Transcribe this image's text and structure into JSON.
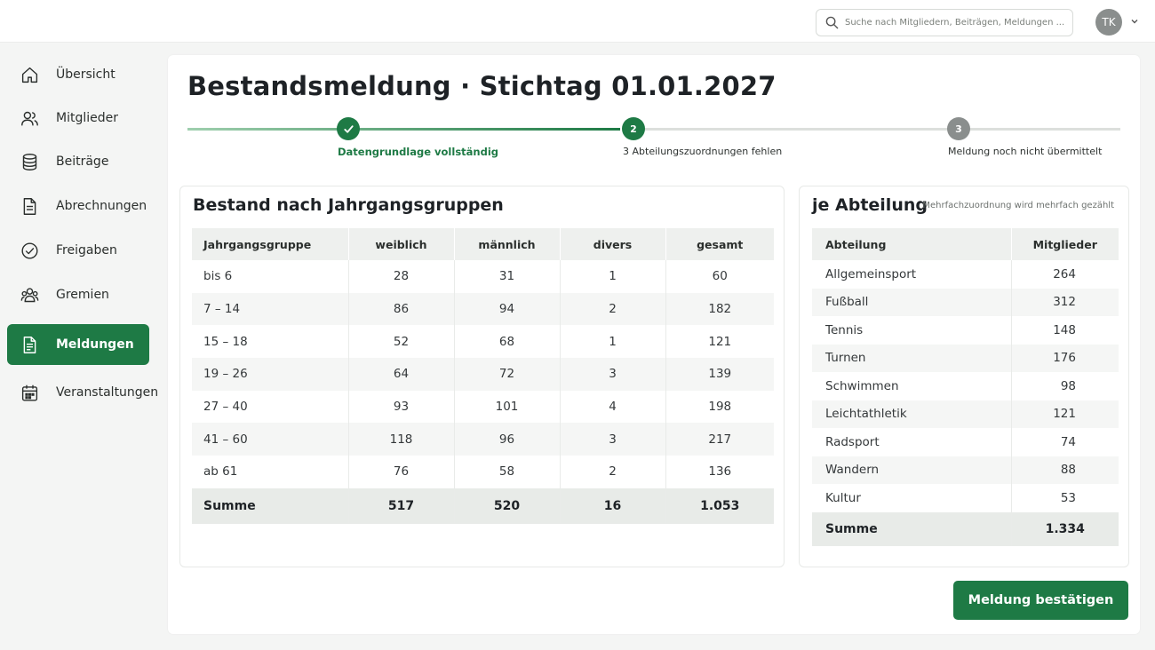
{
  "header": {
    "search_placeholder": "Suche nach Mitgliedern, Beiträgen, Meldungen ...",
    "avatar_initials": "TK"
  },
  "sidebar": {
    "items": [
      {
        "label": "Übersicht",
        "icon": "home-icon"
      },
      {
        "label": "Mitglieder",
        "icon": "users-icon"
      },
      {
        "label": "Beiträge",
        "icon": "coins-icon"
      },
      {
        "label": "Abrechnungen",
        "icon": "document-icon"
      },
      {
        "label": "Freigaben",
        "icon": "check-circle-icon"
      },
      {
        "label": "Gremien",
        "icon": "group-icon"
      },
      {
        "label": "Meldungen",
        "icon": "report-icon",
        "active": true
      },
      {
        "label": "Veranstaltungen",
        "icon": "calendar-icon"
      }
    ]
  },
  "main": {
    "title": "Bestandsmeldung · Stichtag 01.01.2027",
    "stepper": [
      {
        "number": "",
        "label": "Datengrundlage vollständig",
        "state": "done"
      },
      {
        "number": "2",
        "label": "3 Abteilungszuordnungen fehlen",
        "state": "current"
      },
      {
        "number": "3",
        "label": "Meldung noch nicht übermittelt",
        "state": "pending"
      }
    ],
    "age_table": {
      "title": "Bestand nach Jahrgangsgruppen",
      "columns": [
        "Jahrgangsgruppe",
        "weiblich",
        "männlich",
        "divers",
        "gesamt"
      ],
      "rows": [
        [
          "bis 6",
          "28",
          "31",
          "1",
          "60"
        ],
        [
          "7 – 14",
          "86",
          "94",
          "2",
          "182"
        ],
        [
          "15 – 18",
          "52",
          "68",
          "1",
          "121"
        ],
        [
          "19 – 26",
          "64",
          "72",
          "3",
          "139"
        ],
        [
          "27 – 40",
          "93",
          "101",
          "4",
          "198"
        ],
        [
          "41 – 60",
          "118",
          "96",
          "3",
          "217"
        ],
        [
          "ab 61",
          "76",
          "58",
          "2",
          "136"
        ]
      ],
      "total": [
        "Summe",
        "517",
        "520",
        "16",
        "1.053"
      ]
    },
    "dept_table": {
      "title": "je Abteilung",
      "note": "Mehrfachzuordnung wird mehrfach gezählt",
      "columns": [
        "Abteilung",
        "Mitglieder"
      ],
      "rows": [
        [
          "Allgemeinsport",
          "264"
        ],
        [
          "Fußball",
          "312"
        ],
        [
          "Tennis",
          "148"
        ],
        [
          "Turnen",
          "176"
        ],
        [
          "Schwimmen",
          "98"
        ],
        [
          "Leichtathletik",
          "121"
        ],
        [
          "Radsport",
          "74"
        ],
        [
          "Wandern",
          "88"
        ],
        [
          "Kultur",
          "53"
        ]
      ],
      "total": [
        "Summe",
        "1.334"
      ]
    },
    "confirm_label": "Meldung bestätigen"
  },
  "colors": {
    "accent": "#1e7a45",
    "step_pending": "#8a8e8d",
    "header_bg": "#eef0ee"
  }
}
